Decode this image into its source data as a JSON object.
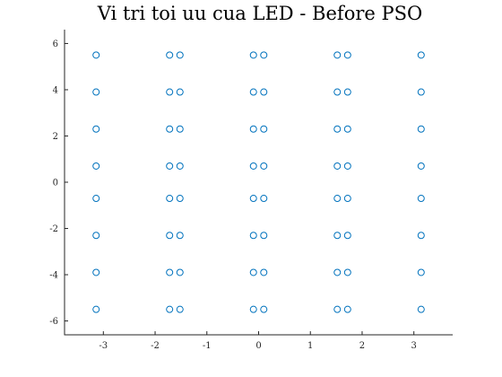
{
  "chart_data": {
    "type": "scatter",
    "title": "Vi tri toi uu cua LED - Before PSO",
    "xlabel": "",
    "ylabel": "",
    "xlim": [
      -3.75,
      3.75
    ],
    "ylim": [
      -6.6,
      6.6
    ],
    "xticks": [
      -3,
      -2,
      -1,
      0,
      1,
      2,
      3
    ],
    "yticks": [
      -6,
      -4,
      -2,
      0,
      2,
      4,
      6
    ],
    "xticklabels": [
      "-3",
      "-2",
      "-1",
      "0",
      "1",
      "2",
      "3"
    ],
    "yticklabels": [
      "-6",
      "-4",
      "-2",
      "0",
      "2",
      "4",
      "6"
    ],
    "grid": false,
    "marker": "circle-open",
    "color": "#0072BD",
    "x_columns": [
      -3.14,
      -1.72,
      -1.52,
      -0.1,
      0.1,
      1.52,
      1.72,
      3.14
    ],
    "y_rows": [
      5.5,
      3.9,
      2.3,
      0.7,
      -0.7,
      -2.3,
      -3.9,
      -5.5
    ]
  }
}
